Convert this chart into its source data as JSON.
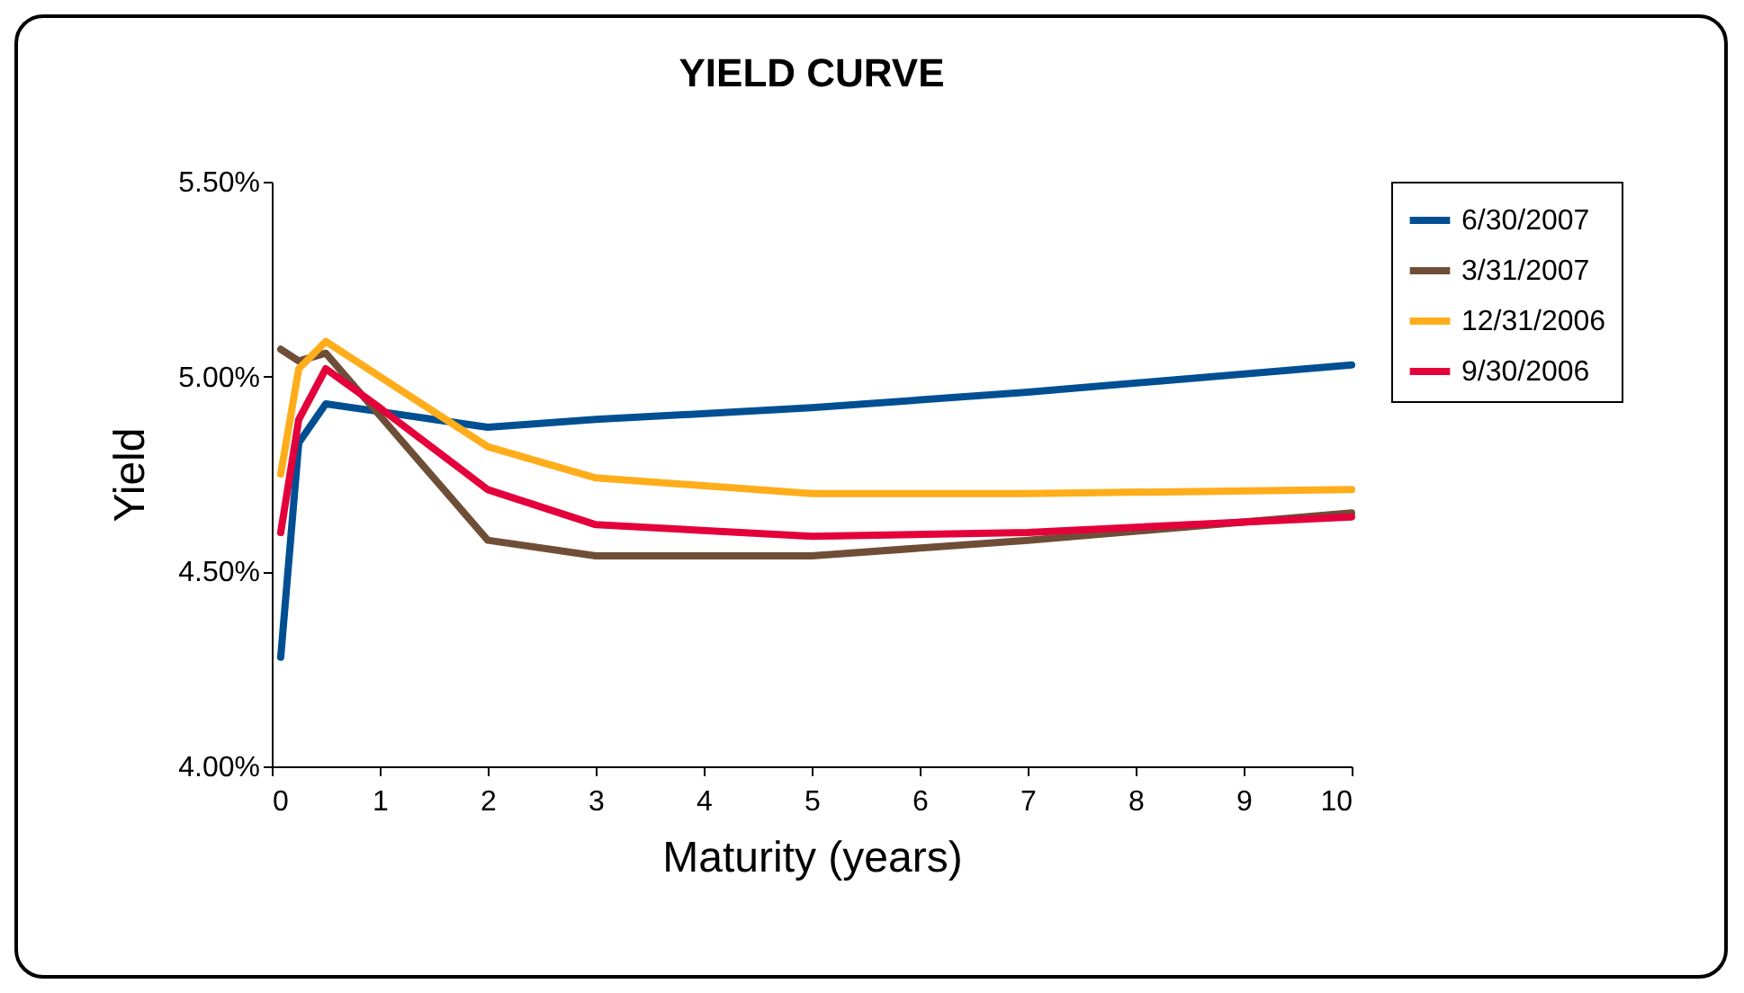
{
  "chart_data": {
    "type": "line",
    "title": "YIELD CURVE",
    "xlabel": "Maturity (years)",
    "ylabel": "Yield",
    "x": [
      0.083,
      0.25,
      0.5,
      1,
      2,
      3,
      5,
      7,
      10
    ],
    "series": [
      {
        "name": "6/30/2007",
        "color": "#004f93",
        "values": [
          4.28,
          4.83,
          4.93,
          4.91,
          4.87,
          4.89,
          4.92,
          4.96,
          5.03
        ]
      },
      {
        "name": "3/31/2007",
        "color": "#6f4e37",
        "values": [
          5.07,
          5.04,
          5.06,
          4.9,
          4.58,
          4.54,
          4.54,
          4.58,
          4.65
        ]
      },
      {
        "name": "12/31/2006",
        "color": "#ffad1a",
        "values": [
          4.75,
          5.02,
          5.09,
          5.0,
          4.82,
          4.74,
          4.7,
          4.7,
          4.71
        ]
      },
      {
        "name": "9/30/2006",
        "color": "#e4003b",
        "values": [
          4.6,
          4.89,
          5.02,
          4.92,
          4.71,
          4.62,
          4.59,
          4.6,
          4.64
        ]
      }
    ],
    "xlim": [
      0,
      10
    ],
    "xticks": [
      0,
      1,
      2,
      3,
      4,
      5,
      6,
      7,
      8,
      9,
      10
    ],
    "ylim": [
      4,
      5.5
    ],
    "yticks": [
      {
        "value": 4,
        "label": "4.00%"
      },
      {
        "value": 4.5,
        "label": "4.50%"
      },
      {
        "value": 5,
        "label": "5.00%"
      },
      {
        "value": 5.5,
        "label": "5.50%"
      }
    ],
    "grid": false,
    "legend": "right",
    "marker": "none",
    "line_style": "solid"
  }
}
